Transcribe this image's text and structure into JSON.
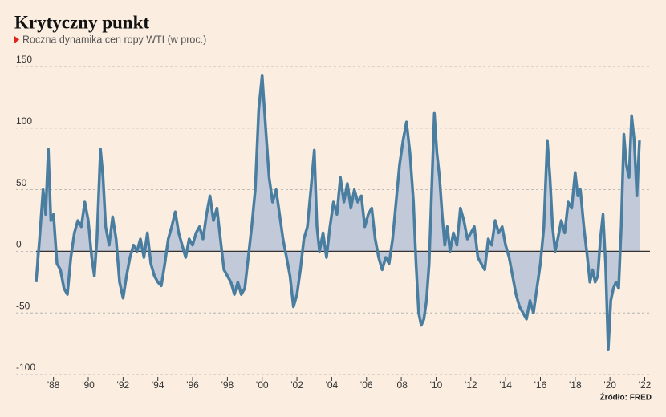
{
  "chart_data": {
    "type": "area-line",
    "title": "Krytyczny punkt",
    "subtitle": "Roczna dynamika cen ropy WTI (w proc.)",
    "source": "Źródło: FRED",
    "color": "#4a7ea0",
    "fill_color": "#c2c9d9",
    "grid": true,
    "xlim": [
      1987,
      2022.3
    ],
    "ylim": [
      -100,
      150
    ],
    "yticks": [
      150,
      100,
      50,
      0,
      -50,
      -100
    ],
    "xticks": [
      {
        "value": 1988,
        "label": "'88"
      },
      {
        "value": 1990,
        "label": "'90"
      },
      {
        "value": 1992,
        "label": "'92"
      },
      {
        "value": 1994,
        "label": "'94"
      },
      {
        "value": 1996,
        "label": "'96"
      },
      {
        "value": 1998,
        "label": "'98"
      },
      {
        "value": 2000,
        "label": "'00"
      },
      {
        "value": 2002,
        "label": "'02"
      },
      {
        "value": 2004,
        "label": "'04"
      },
      {
        "value": 2006,
        "label": "'06"
      },
      {
        "value": 2008,
        "label": "'08"
      },
      {
        "value": 2010,
        "label": "'10"
      },
      {
        "value": 2012,
        "label": "'12"
      },
      {
        "value": 2014,
        "label": "'14"
      },
      {
        "value": 2016,
        "label": "'16"
      },
      {
        "value": 2018,
        "label": "'18"
      },
      {
        "value": 2020,
        "label": "'20"
      },
      {
        "value": 2022,
        "label": "'22"
      }
    ],
    "x": [
      1987.0,
      1987.2,
      1987.4,
      1987.55,
      1987.7,
      1987.85,
      1988.0,
      1988.2,
      1988.4,
      1988.6,
      1988.8,
      1989.0,
      1989.2,
      1989.4,
      1989.6,
      1989.8,
      1990.0,
      1990.2,
      1990.35,
      1990.5,
      1990.7,
      1990.85,
      1991.0,
      1991.2,
      1991.4,
      1991.6,
      1991.8,
      1992.0,
      1992.2,
      1992.4,
      1992.6,
      1992.8,
      1993.0,
      1993.2,
      1993.4,
      1993.6,
      1993.8,
      1994.0,
      1994.2,
      1994.4,
      1994.6,
      1994.8,
      1995.0,
      1995.2,
      1995.4,
      1995.6,
      1995.8,
      1996.0,
      1996.2,
      1996.4,
      1996.6,
      1996.8,
      1997.0,
      1997.2,
      1997.4,
      1997.6,
      1997.8,
      1998.0,
      1998.2,
      1998.4,
      1998.6,
      1998.8,
      1999.0,
      1999.2,
      1999.4,
      1999.6,
      1999.8,
      2000.0,
      2000.2,
      2000.4,
      2000.6,
      2000.8,
      2001.0,
      2001.2,
      2001.4,
      2001.6,
      2001.8,
      2002.0,
      2002.2,
      2002.4,
      2002.6,
      2002.8,
      2003.0,
      2003.15,
      2003.3,
      2003.5,
      2003.7,
      2003.9,
      2004.1,
      2004.3,
      2004.5,
      2004.7,
      2004.9,
      2005.1,
      2005.3,
      2005.5,
      2005.7,
      2005.9,
      2006.1,
      2006.3,
      2006.5,
      2006.7,
      2006.9,
      2007.1,
      2007.3,
      2007.5,
      2007.7,
      2007.9,
      2008.1,
      2008.3,
      2008.5,
      2008.7,
      2008.85,
      2009.0,
      2009.15,
      2009.3,
      2009.45,
      2009.6,
      2009.75,
      2009.9,
      2010.05,
      2010.2,
      2010.35,
      2010.5,
      2010.65,
      2010.8,
      2011.0,
      2011.2,
      2011.4,
      2011.6,
      2011.8,
      2012.0,
      2012.2,
      2012.4,
      2012.6,
      2012.8,
      2013.0,
      2013.2,
      2013.4,
      2013.6,
      2013.8,
      2014.0,
      2014.2,
      2014.4,
      2014.6,
      2014.8,
      2015.0,
      2015.2,
      2015.4,
      2015.6,
      2015.8,
      2016.0,
      2016.2,
      2016.4,
      2016.55,
      2016.7,
      2016.85,
      2017.0,
      2017.2,
      2017.4,
      2017.6,
      2017.8,
      2018.0,
      2018.15,
      2018.3,
      2018.5,
      2018.7,
      2018.85,
      2019.0,
      2019.15,
      2019.3,
      2019.45,
      2019.6,
      2019.75,
      2019.9,
      2020.05,
      2020.2,
      2020.35,
      2020.5,
      2020.65,
      2020.8,
      2020.95,
      2021.1,
      2021.25,
      2021.4,
      2021.55,
      2021.7
    ],
    "values": [
      -25,
      10,
      50,
      30,
      83,
      25,
      30,
      -10,
      -15,
      -30,
      -35,
      -5,
      15,
      25,
      20,
      40,
      25,
      -5,
      -20,
      10,
      83,
      60,
      20,
      5,
      28,
      10,
      -25,
      -38,
      -20,
      -5,
      5,
      0,
      10,
      -5,
      15,
      -10,
      -20,
      -25,
      -28,
      -10,
      10,
      20,
      32,
      15,
      5,
      -5,
      10,
      5,
      15,
      20,
      10,
      30,
      45,
      25,
      35,
      10,
      -15,
      -20,
      -25,
      -35,
      -25,
      -35,
      -30,
      -5,
      20,
      50,
      115,
      143,
      100,
      60,
      40,
      50,
      30,
      10,
      -5,
      -20,
      -45,
      -35,
      -15,
      10,
      20,
      50,
      82,
      20,
      0,
      15,
      -5,
      20,
      40,
      30,
      60,
      40,
      55,
      35,
      50,
      40,
      45,
      20,
      30,
      35,
      10,
      -5,
      -15,
      -5,
      -10,
      10,
      40,
      70,
      90,
      105,
      80,
      40,
      -10,
      -50,
      -60,
      -55,
      -40,
      -10,
      50,
      112,
      80,
      60,
      30,
      5,
      20,
      0,
      15,
      5,
      35,
      25,
      10,
      15,
      20,
      -5,
      -10,
      -15,
      10,
      5,
      25,
      15,
      20,
      5,
      -5,
      -20,
      -35,
      -45,
      -50,
      -55,
      -40,
      -50,
      -30,
      -10,
      20,
      90,
      60,
      20,
      0,
      10,
      25,
      15,
      40,
      35,
      64,
      45,
      50,
      20,
      -5,
      -25,
      -15,
      -25,
      -20,
      10,
      30,
      -10,
      -80,
      -40,
      -30,
      -25,
      -30,
      20,
      95,
      70,
      60,
      110,
      90,
      45,
      90
    ]
  }
}
